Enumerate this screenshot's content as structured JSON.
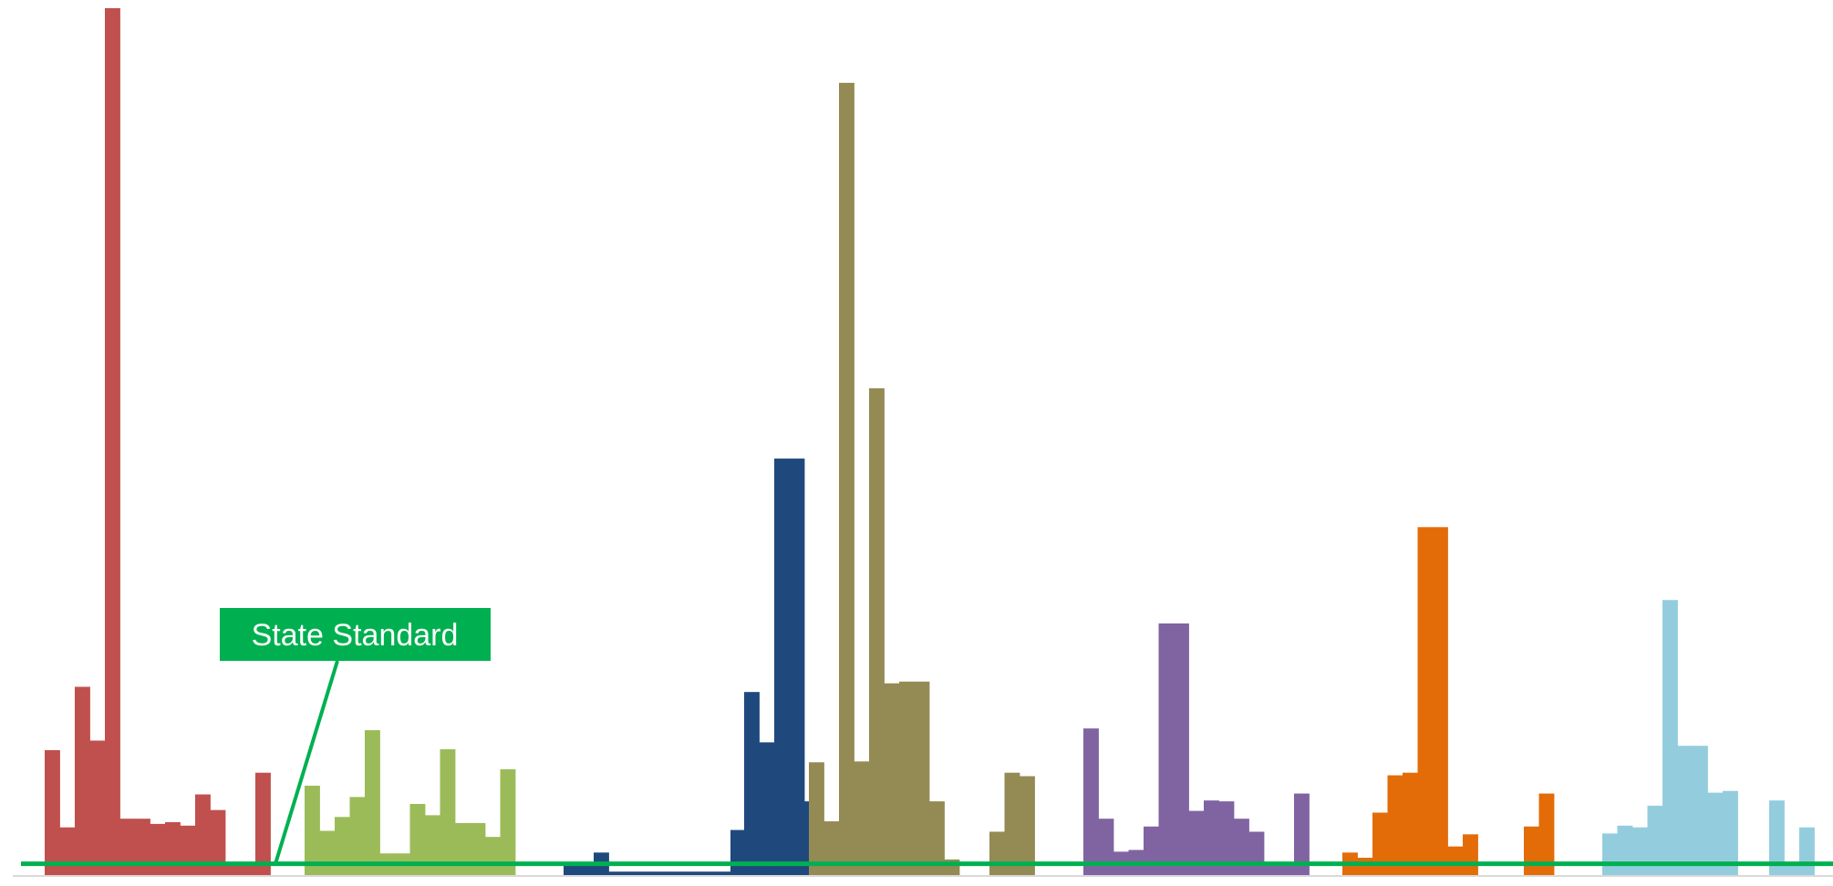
{
  "chart_data": {
    "type": "bar",
    "title": "",
    "xlabel": "",
    "ylabel": "",
    "ylim": [
      0,
      100
    ],
    "grid": false,
    "legend": "none",
    "reference_line": {
      "label": "State Standard",
      "value": 1.4,
      "color": "#00b050"
    },
    "groups": [
      {
        "color": "#c0504d",
        "values": [
          14.5,
          5.6,
          21.8,
          15.6,
          100,
          6.6,
          6.6,
          6.0,
          6.2,
          5.8,
          9.4,
          7.6,
          1.5,
          1.5,
          11.9
        ]
      },
      {
        "color": "#9bbb59",
        "values": [
          10.4,
          5.2,
          6.8,
          9.1,
          16.8,
          2.6,
          2.6,
          8.3,
          7.0,
          14.6,
          6.1,
          6.1,
          4.5,
          12.3
        ]
      },
      {
        "color": "#1f497d",
        "values": [
          1.2,
          1.6,
          2.7,
          0.5,
          0.5,
          0.5,
          0.5,
          0.5,
          0.5,
          0.5,
          0.5,
          0.5,
          21.2,
          15.4,
          48.1,
          48.1,
          8.6,
          6.1
        ]
      },
      {
        "color": "#1f497d",
        "values": [
          5.3,
          0.5,
          11.7
        ]
      },
      {
        "color": "#948a54",
        "values": [
          13.1,
          6.3,
          91.4,
          13.2,
          56.2,
          22.2,
          22.4,
          22.4,
          8.6,
          1.9
        ]
      },
      {
        "color": "#948a54",
        "values": [
          5.1,
          11.9,
          11.5
        ]
      },
      {
        "color": "#8064a2",
        "values": [
          17.0,
          6.6,
          2.8,
          3.0,
          5.7,
          29.1,
          29.1,
          7.5,
          8.7,
          8.6,
          6.6,
          5.1,
          1.2,
          1.2,
          9.5
        ]
      },
      {
        "color": "#e36c09",
        "values": [
          2.7,
          2.1,
          7.3,
          11.6,
          11.9,
          40.2,
          40.2,
          3.4,
          4.8
        ]
      },
      {
        "color": "#e36c09",
        "values": [
          5.7,
          9.5
        ]
      },
      {
        "color": "#93cddd",
        "values": [
          4.9,
          5.8,
          5.6,
          8.1,
          31.8,
          15.0,
          15.0,
          9.6,
          9.8
        ]
      },
      {
        "color": "#93cddd",
        "values": [
          8.7,
          1.5,
          5.6
        ]
      }
    ]
  }
}
